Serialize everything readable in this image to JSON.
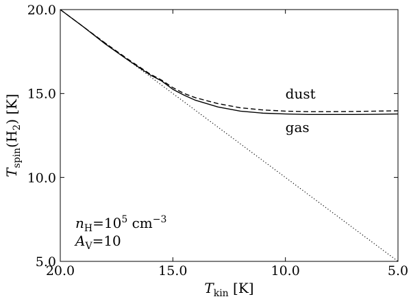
{
  "chart_data": {
    "type": "line",
    "xlabel": "T_kin [K]",
    "ylabel": "T_spin(H_2) [K]",
    "xlim": [
      20.0,
      5.0
    ],
    "ylim": [
      5.0,
      20.0
    ],
    "x_inverted": true,
    "x_ticks": [
      20.0,
      15.0,
      10.0,
      5.0
    ],
    "x_tick_labels": [
      "20.0",
      "15.0",
      "10.0",
      "5.0"
    ],
    "y_ticks": [
      5.0,
      10.0,
      15.0,
      20.0
    ],
    "y_tick_labels": [
      "5.0",
      "10.0",
      "15.0",
      "20.0"
    ],
    "grid": false,
    "series": [
      {
        "name": "gas",
        "style": "solid",
        "color": "#000000",
        "x": [
          20.0,
          19.0,
          18.0,
          17.0,
          16.0,
          15.5,
          15.0,
          14.5,
          14.0,
          13.0,
          12.0,
          11.0,
          10.0,
          9.0,
          8.0,
          7.0,
          6.0,
          5.0
        ],
        "y": [
          20.0,
          19.0,
          17.95,
          17.0,
          16.1,
          15.75,
          15.25,
          14.9,
          14.6,
          14.2,
          13.95,
          13.83,
          13.78,
          13.75,
          13.75,
          13.75,
          13.76,
          13.78
        ]
      },
      {
        "name": "dust",
        "style": "dashed",
        "color": "#000000",
        "x": [
          20.0,
          19.0,
          18.0,
          17.0,
          16.0,
          15.5,
          15.0,
          14.5,
          14.0,
          13.0,
          12.0,
          11.0,
          10.0,
          9.0,
          8.0,
          7.0,
          6.0,
          5.0
        ],
        "y": [
          20.0,
          19.0,
          18.0,
          17.05,
          16.15,
          15.8,
          15.35,
          15.0,
          14.75,
          14.4,
          14.15,
          14.02,
          13.95,
          13.92,
          13.92,
          13.93,
          13.95,
          13.97
        ]
      },
      {
        "name": "",
        "style": "dotted",
        "color": "#000000",
        "x": [
          20.0,
          5.0
        ],
        "y": [
          20.0,
          5.0
        ]
      }
    ],
    "annotations": [
      {
        "text": "dust",
        "x": 10.0,
        "y": 14.7
      },
      {
        "text": "gas",
        "x": 10.0,
        "y": 12.7
      }
    ],
    "inset_text": {
      "line1": {
        "var": "n",
        "sub": "H",
        "eq": "=10",
        "sup": "5",
        "unit": " cm",
        "unit_sup": "−3"
      },
      "line2": {
        "var": "A",
        "sub": "V",
        "eq": "=10"
      }
    }
  }
}
